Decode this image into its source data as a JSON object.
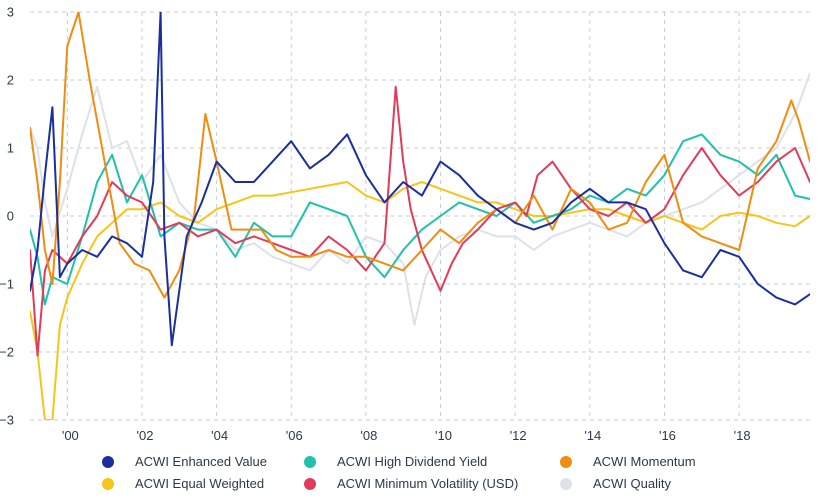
{
  "chart_data": {
    "type": "line",
    "title": "",
    "xlabel": "",
    "ylabel": "",
    "xlim": [
      1999.0,
      2019.9
    ],
    "ylim": [
      -3,
      3
    ],
    "grid": true,
    "legend_position": "bottom",
    "y_ticks": [
      3,
      2,
      1,
      0,
      -1,
      -2,
      -3
    ],
    "y_tick_labels": [
      "3",
      "2",
      "1",
      "0",
      "−1",
      "−2",
      "−3"
    ],
    "x_ticks": [
      2000,
      2002,
      2004,
      2006,
      2008,
      2010,
      2012,
      2014,
      2016,
      2018
    ],
    "x_tick_labels": [
      "'00",
      "'02",
      "'04",
      "'06",
      "'08",
      "'10",
      "'12",
      "'14",
      "'16",
      "'18"
    ],
    "series": [
      {
        "name": "ACWI Enhanced Value",
        "color": "#1a2f9c",
        "x": [
          1999.0,
          1999.2,
          1999.4,
          1999.6,
          1999.8,
          2000.0,
          2000.4,
          2000.8,
          2001.2,
          2001.6,
          2002.0,
          2002.3,
          2002.5,
          2002.6,
          2002.8,
          2003.2,
          2003.6,
          2004.0,
          2004.5,
          2005.0,
          2005.5,
          2006.0,
          2006.5,
          2007.0,
          2007.5,
          2008.0,
          2008.5,
          2009.0,
          2009.5,
          2010.0,
          2010.5,
          2011.0,
          2011.5,
          2012.0,
          2012.5,
          2013.0,
          2013.5,
          2014.0,
          2014.5,
          2015.0,
          2015.5,
          2016.0,
          2016.5,
          2017.0,
          2017.5,
          2018.0,
          2018.5,
          2019.0,
          2019.5,
          2019.9
        ],
        "values": [
          -1.1,
          -0.5,
          0.6,
          1.6,
          -0.9,
          -0.7,
          -0.5,
          -0.6,
          -0.3,
          -0.4,
          -0.6,
          0.5,
          3.0,
          -0.3,
          -1.9,
          -0.3,
          0.2,
          0.8,
          0.5,
          0.5,
          0.8,
          1.1,
          0.7,
          0.9,
          1.2,
          0.6,
          0.2,
          0.5,
          0.3,
          0.8,
          0.6,
          0.3,
          0.1,
          -0.1,
          -0.2,
          -0.1,
          0.2,
          0.4,
          0.2,
          0.2,
          0.1,
          -0.4,
          -0.8,
          -0.9,
          -0.5,
          -0.6,
          -1.0,
          -1.2,
          -1.3,
          -1.15
        ]
      },
      {
        "name": "ACWI High Dividend Yield",
        "color": "#1fc1ad",
        "x": [
          1999.0,
          1999.2,
          1999.4,
          1999.6,
          2000.0,
          2000.4,
          2000.8,
          2001.2,
          2001.6,
          2002.0,
          2002.5,
          2003.0,
          2003.5,
          2004.0,
          2004.5,
          2005.0,
          2005.5,
          2006.0,
          2006.5,
          2007.0,
          2007.5,
          2008.0,
          2008.5,
          2009.0,
          2009.5,
          2010.0,
          2010.5,
          2011.0,
          2011.5,
          2012.0,
          2012.5,
          2013.0,
          2013.5,
          2014.0,
          2014.5,
          2015.0,
          2015.5,
          2016.0,
          2016.5,
          2017.0,
          2017.5,
          2018.0,
          2018.5,
          2019.0,
          2019.5,
          2019.9
        ],
        "values": [
          -0.2,
          -0.6,
          -1.3,
          -0.9,
          -1.0,
          -0.3,
          0.5,
          0.9,
          0.2,
          0.6,
          -0.3,
          -0.1,
          -0.2,
          -0.2,
          -0.6,
          -0.1,
          -0.3,
          -0.3,
          0.2,
          0.1,
          0.0,
          -0.6,
          -0.9,
          -0.5,
          -0.2,
          0.0,
          0.2,
          0.1,
          0.0,
          0.2,
          -0.1,
          0.0,
          0.1,
          0.3,
          0.2,
          0.4,
          0.3,
          0.6,
          1.1,
          1.2,
          0.9,
          0.8,
          0.6,
          0.9,
          0.3,
          0.25
        ]
      },
      {
        "name": "ACWI Momentum",
        "color": "#f08c10",
        "x": [
          1999.0,
          1999.2,
          1999.4,
          1999.6,
          1999.8,
          2000.0,
          2000.3,
          2000.6,
          2001.0,
          2001.4,
          2001.8,
          2002.2,
          2002.6,
          2003.0,
          2003.4,
          2003.7,
          2004.0,
          2004.4,
          2004.8,
          2005.2,
          2005.6,
          2006.0,
          2006.5,
          2007.0,
          2007.5,
          2008.0,
          2008.5,
          2009.0,
          2009.5,
          2010.0,
          2010.5,
          2011.0,
          2011.5,
          2012.0,
          2012.5,
          2013.0,
          2013.5,
          2014.0,
          2014.5,
          2015.0,
          2015.5,
          2016.0,
          2016.5,
          2017.0,
          2017.5,
          2018.0,
          2018.5,
          2019.0,
          2019.4,
          2019.6,
          2019.9
        ],
        "values": [
          1.3,
          0.5,
          -0.5,
          -1.0,
          0.5,
          2.5,
          3.0,
          2.0,
          0.8,
          -0.4,
          -0.7,
          -0.8,
          -1.2,
          -0.8,
          0.0,
          1.5,
          0.8,
          -0.2,
          -0.2,
          -0.2,
          -0.5,
          -0.6,
          -0.6,
          -0.5,
          -0.6,
          -0.6,
          -0.7,
          -0.8,
          -0.5,
          -0.2,
          -0.4,
          -0.1,
          0.1,
          -0.1,
          0.3,
          -0.2,
          0.4,
          0.2,
          -0.2,
          -0.1,
          0.5,
          0.9,
          -0.1,
          -0.3,
          -0.4,
          -0.5,
          0.7,
          1.1,
          1.7,
          1.4,
          0.8
        ]
      },
      {
        "name": "ACWI Equal Weighted",
        "color": "#f5c518",
        "x": [
          1999.0,
          1999.2,
          1999.4,
          1999.6,
          1999.8,
          2000.0,
          2000.4,
          2000.8,
          2001.2,
          2001.6,
          2002.0,
          2002.5,
          2003.0,
          2003.5,
          2004.0,
          2004.5,
          2005.0,
          2005.5,
          2006.0,
          2006.5,
          2007.0,
          2007.5,
          2008.0,
          2008.5,
          2009.0,
          2009.5,
          2010.0,
          2010.5,
          2011.0,
          2011.5,
          2012.0,
          2012.5,
          2013.0,
          2013.5,
          2014.0,
          2014.5,
          2015.0,
          2015.5,
          2016.0,
          2016.5,
          2017.0,
          2017.5,
          2018.0,
          2018.5,
          2019.0,
          2019.5,
          2019.9
        ],
        "values": [
          -1.4,
          -2.0,
          -3.0,
          -3.0,
          -1.6,
          -1.2,
          -0.7,
          -0.3,
          -0.1,
          0.1,
          0.1,
          0.2,
          0.0,
          -0.1,
          0.1,
          0.2,
          0.3,
          0.3,
          0.35,
          0.4,
          0.45,
          0.5,
          0.3,
          0.2,
          0.4,
          0.5,
          0.4,
          0.3,
          0.2,
          0.2,
          0.1,
          0.0,
          0.0,
          0.05,
          0.1,
          0.1,
          0.0,
          -0.1,
          0.0,
          -0.1,
          -0.2,
          0.0,
          0.05,
          0.0,
          -0.1,
          -0.15,
          0.0
        ]
      },
      {
        "name": "ACWI Minimum Volatility (USD)",
        "color": "#e03c5a",
        "x": [
          1999.0,
          1999.2,
          1999.4,
          1999.6,
          2000.0,
          2000.4,
          2000.8,
          2001.2,
          2001.6,
          2002.0,
          2002.5,
          2003.0,
          2003.5,
          2004.0,
          2004.5,
          2005.0,
          2005.5,
          2006.0,
          2006.5,
          2007.0,
          2007.5,
          2008.0,
          2008.5,
          2008.8,
          2009.0,
          2009.2,
          2009.5,
          2010.0,
          2010.3,
          2010.6,
          2011.0,
          2011.5,
          2012.0,
          2012.3,
          2012.6,
          2013.0,
          2013.5,
          2014.0,
          2014.5,
          2015.0,
          2015.5,
          2016.0,
          2016.5,
          2017.0,
          2017.5,
          2018.0,
          2018.5,
          2019.0,
          2019.5,
          2019.9
        ],
        "values": [
          -0.5,
          -2.05,
          -0.8,
          -0.5,
          -0.7,
          -0.3,
          0.0,
          0.5,
          0.3,
          0.2,
          -0.2,
          -0.1,
          -0.3,
          -0.2,
          -0.4,
          -0.3,
          -0.4,
          -0.5,
          -0.6,
          -0.3,
          -0.5,
          -0.8,
          -0.4,
          1.9,
          0.8,
          0.1,
          -0.5,
          -1.1,
          -0.7,
          -0.4,
          -0.2,
          0.1,
          0.2,
          0.0,
          0.6,
          0.8,
          0.4,
          0.1,
          0.0,
          0.2,
          -0.1,
          0.1,
          0.6,
          1.0,
          0.6,
          0.3,
          0.5,
          0.8,
          1.0,
          0.5
        ]
      },
      {
        "name": "ACWI Quality",
        "color": "#dde1ea",
        "x": [
          1999.0,
          1999.2,
          1999.4,
          1999.6,
          2000.0,
          2000.4,
          2000.8,
          2001.2,
          2001.6,
          2002.0,
          2002.5,
          2003.0,
          2003.5,
          2004.0,
          2004.5,
          2005.0,
          2005.5,
          2006.0,
          2006.5,
          2007.0,
          2007.5,
          2008.0,
          2008.5,
          2009.0,
          2009.3,
          2009.6,
          2010.0,
          2010.5,
          2011.0,
          2011.5,
          2012.0,
          2012.5,
          2013.0,
          2013.5,
          2014.0,
          2014.5,
          2015.0,
          2015.5,
          2016.0,
          2016.5,
          2017.0,
          2017.5,
          2018.0,
          2018.5,
          2019.0,
          2019.5,
          2019.9
        ],
        "values": [
          1.3,
          1.0,
          0.2,
          -0.3,
          0.4,
          1.2,
          1.9,
          1.0,
          1.1,
          0.5,
          0.9,
          0.2,
          -0.1,
          -0.2,
          -0.5,
          -0.4,
          -0.6,
          -0.7,
          -0.8,
          -0.5,
          -0.7,
          -0.3,
          -0.4,
          -0.7,
          -1.6,
          -0.9,
          -0.5,
          -0.3,
          -0.2,
          -0.3,
          -0.3,
          -0.5,
          -0.3,
          -0.2,
          -0.1,
          -0.2,
          -0.3,
          -0.1,
          0.0,
          0.1,
          0.2,
          0.4,
          0.6,
          0.8,
          1.0,
          1.5,
          2.1
        ]
      }
    ]
  }
}
